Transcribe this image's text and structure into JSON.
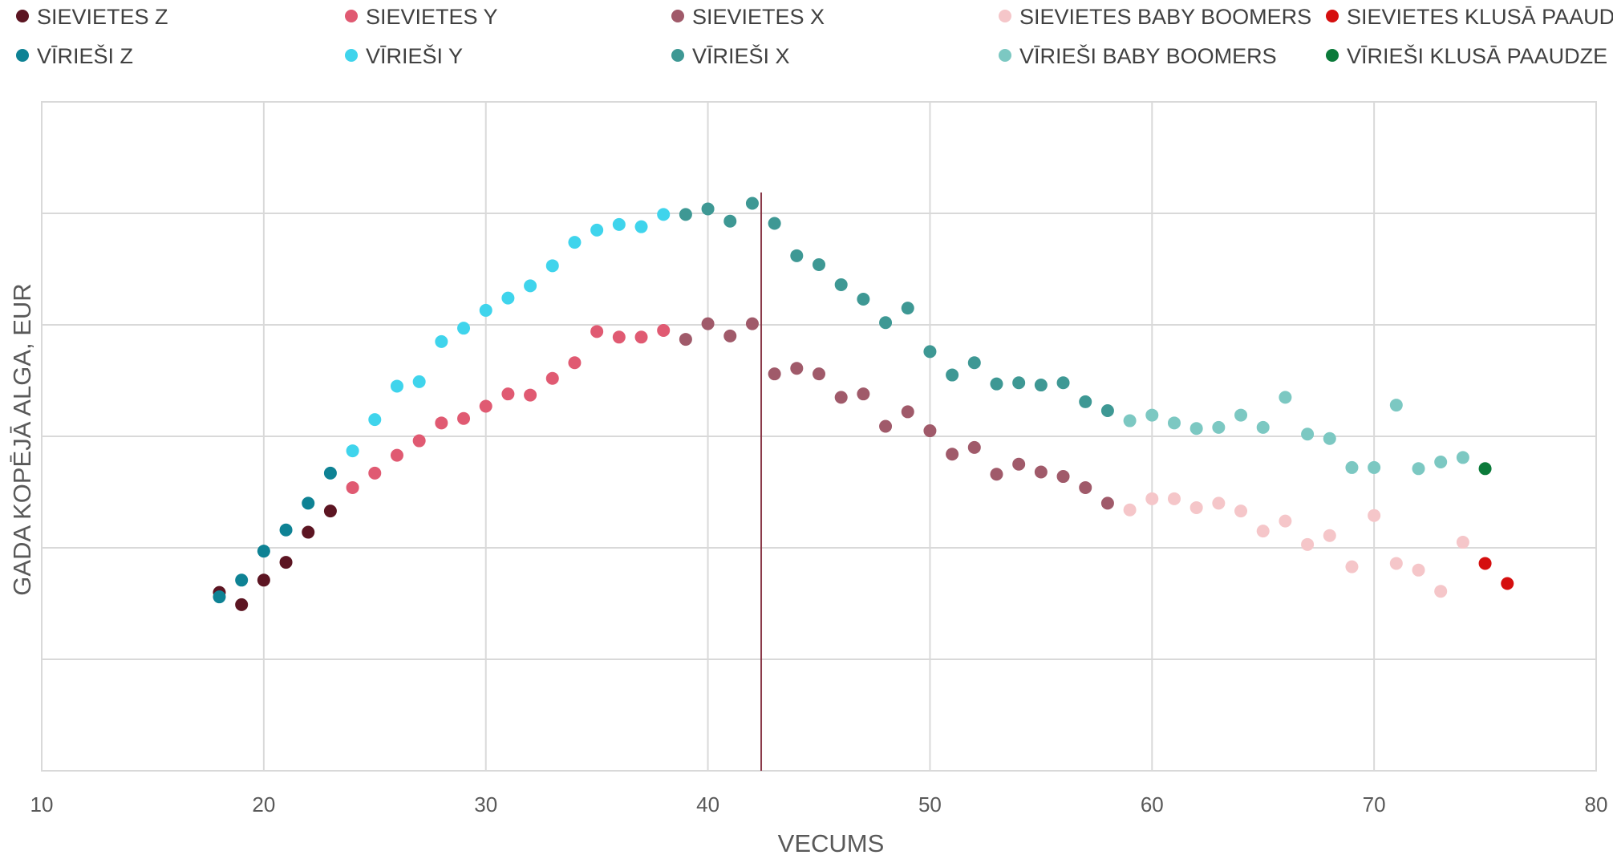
{
  "chart_data": {
    "type": "scatter",
    "title": "",
    "xlabel": "VECUMS",
    "ylabel": "GADA KOPĒJĀ ALGA, EUR",
    "xlim": [
      10,
      80
    ],
    "x_ticks": [
      "10",
      "20",
      "30",
      "40",
      "50",
      "60",
      "70",
      "80"
    ],
    "ylim": [
      0,
      6
    ],
    "y_ticks": [],
    "grid": true,
    "legend_position": "top",
    "reference_line": {
      "x": 42.4,
      "color": "#8B3A4A"
    },
    "series": [
      {
        "name": "SIEVIETES Z",
        "color": "#5C1522",
        "points": [
          [
            18,
            1.6
          ],
          [
            19,
            1.49
          ],
          [
            20,
            1.71
          ],
          [
            21,
            1.87
          ],
          [
            22,
            2.14
          ],
          [
            23,
            2.33
          ]
        ]
      },
      {
        "name": "SIEVIETES Y",
        "color": "#E05A72",
        "points": [
          [
            24,
            2.54
          ],
          [
            25,
            2.67
          ],
          [
            26,
            2.83
          ],
          [
            27,
            2.96
          ],
          [
            28,
            3.12
          ],
          [
            29,
            3.16
          ],
          [
            30,
            3.27
          ],
          [
            31,
            3.38
          ],
          [
            32,
            3.37
          ],
          [
            33,
            3.52
          ],
          [
            34,
            3.66
          ],
          [
            35,
            3.94
          ],
          [
            36,
            3.89
          ],
          [
            37,
            3.89
          ],
          [
            38,
            3.95
          ]
        ]
      },
      {
        "name": "SIEVIETES X",
        "color": "#A05A6A",
        "points": [
          [
            39,
            3.87
          ],
          [
            40,
            4.01
          ],
          [
            41,
            3.9
          ],
          [
            42,
            4.01
          ],
          [
            43,
            3.56
          ],
          [
            44,
            3.61
          ],
          [
            45,
            3.56
          ],
          [
            46,
            3.35
          ],
          [
            47,
            3.38
          ],
          [
            48,
            3.09
          ],
          [
            49,
            3.22
          ],
          [
            50,
            3.05
          ],
          [
            51,
            2.84
          ],
          [
            52,
            2.9
          ],
          [
            53,
            2.66
          ],
          [
            54,
            2.75
          ],
          [
            55,
            2.68
          ],
          [
            56,
            2.64
          ],
          [
            57,
            2.54
          ],
          [
            58,
            2.4
          ]
        ]
      },
      {
        "name": "SIEVIETES BABY BOOMERS",
        "color": "#F5C6C9",
        "points": [
          [
            59,
            2.34
          ],
          [
            60,
            2.44
          ],
          [
            61,
            2.44
          ],
          [
            62,
            2.36
          ],
          [
            63,
            2.4
          ],
          [
            64,
            2.33
          ],
          [
            65,
            2.15
          ],
          [
            66,
            2.24
          ],
          [
            67,
            2.03
          ],
          [
            68,
            2.11
          ],
          [
            69,
            1.83
          ],
          [
            70,
            2.29
          ],
          [
            71,
            1.86
          ],
          [
            72,
            1.8
          ],
          [
            73,
            1.61
          ],
          [
            74,
            2.05
          ]
        ]
      },
      {
        "name": "SIEVIETES KLUSĀ PAAUDZE",
        "color": "#D50F0F",
        "points": [
          [
            75,
            1.86
          ],
          [
            76,
            1.68
          ]
        ]
      },
      {
        "name": "VĪRIEŠI Z",
        "color": "#0E8294",
        "points": [
          [
            18,
            1.56
          ],
          [
            19,
            1.71
          ],
          [
            20,
            1.97
          ],
          [
            21,
            2.16
          ],
          [
            22,
            2.4
          ],
          [
            23,
            2.67
          ]
        ]
      },
      {
        "name": "VĪRIEŠI Y",
        "color": "#3FD4EC",
        "points": [
          [
            24,
            2.87
          ],
          [
            25,
            3.15
          ],
          [
            26,
            3.45
          ],
          [
            27,
            3.49
          ],
          [
            28,
            3.85
          ],
          [
            29,
            3.97
          ],
          [
            30,
            4.13
          ],
          [
            31,
            4.24
          ],
          [
            32,
            4.35
          ],
          [
            33,
            4.53
          ],
          [
            34,
            4.74
          ],
          [
            35,
            4.85
          ],
          [
            36,
            4.9
          ],
          [
            37,
            4.88
          ],
          [
            38,
            4.99
          ]
        ]
      },
      {
        "name": "VĪRIEŠI X",
        "color": "#3E9894",
        "points": [
          [
            39,
            4.99
          ],
          [
            40,
            5.04
          ],
          [
            41,
            4.93
          ],
          [
            42,
            5.09
          ],
          [
            43,
            4.91
          ],
          [
            44,
            4.62
          ],
          [
            45,
            4.54
          ],
          [
            46,
            4.36
          ],
          [
            47,
            4.23
          ],
          [
            48,
            4.02
          ],
          [
            49,
            4.15
          ],
          [
            50,
            3.76
          ],
          [
            51,
            3.55
          ],
          [
            52,
            3.66
          ],
          [
            53,
            3.47
          ],
          [
            54,
            3.48
          ],
          [
            55,
            3.46
          ],
          [
            56,
            3.48
          ],
          [
            57,
            3.31
          ],
          [
            58,
            3.23
          ]
        ]
      },
      {
        "name": "VĪRIEŠI BABY BOOMERS",
        "color": "#7CC8C2",
        "points": [
          [
            59,
            3.14
          ],
          [
            60,
            3.19
          ],
          [
            61,
            3.12
          ],
          [
            62,
            3.07
          ],
          [
            63,
            3.08
          ],
          [
            64,
            3.19
          ],
          [
            65,
            3.08
          ],
          [
            66,
            3.35
          ],
          [
            67,
            3.02
          ],
          [
            68,
            2.98
          ],
          [
            69,
            2.72
          ],
          [
            70,
            2.72
          ],
          [
            71,
            3.28
          ],
          [
            72,
            2.71
          ],
          [
            73,
            2.77
          ],
          [
            74,
            2.81
          ]
        ]
      },
      {
        "name": "VĪRIEŠI KLUSĀ PAAUDZE",
        "color": "#0B7A3A",
        "points": [
          [
            75,
            2.71
          ]
        ]
      }
    ]
  }
}
